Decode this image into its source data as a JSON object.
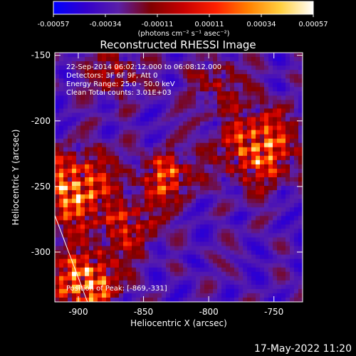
{
  "chart_data": {
    "type": "heatmap",
    "title": "Reconstructed RHESSI Image",
    "xlabel": "Heliocentric X (arcsec)",
    "ylabel": "Heliocentric Y (arcsec)",
    "xlim": [
      -918,
      -728
    ],
    "ylim": [
      -338,
      -148
    ],
    "x_ticks": [
      -900,
      -850,
      -800,
      -750
    ],
    "y_ticks": [
      -150,
      -200,
      -250,
      -300
    ],
    "colorbar": {
      "label": "(photons cm⁻² s⁻¹ asec⁻²)",
      "range": [
        -0.00057,
        0.00057
      ],
      "ticks": [
        "-0.00057",
        "-0.00034",
        "-0.00011",
        "0.00011",
        "0.00034",
        "0.00057"
      ],
      "stops": [
        "#0000ff",
        "#3300cc",
        "#5a1fa8",
        "#800000",
        "#c80000",
        "#ff2000",
        "#ff8000",
        "#ffd040",
        "#ffffff"
      ]
    },
    "annotations": [
      "22-Sep-2014 06:02:12.000 to 06:08:12.000",
      "Detectors: 3F 6F 9F, Att 0",
      "Energy Range: 25.0 - 50.0 keV",
      "Clean     Total counts: 3.01E+03"
    ],
    "position_label": "Position of Peak: [-869,-331]",
    "peak": {
      "x": -869,
      "y": -331
    },
    "limb_line": [
      [
        -918,
        -272
      ],
      [
        -893,
        -338
      ]
    ],
    "grid": false
  },
  "footer_timestamp": "17-May-2022 11:20"
}
